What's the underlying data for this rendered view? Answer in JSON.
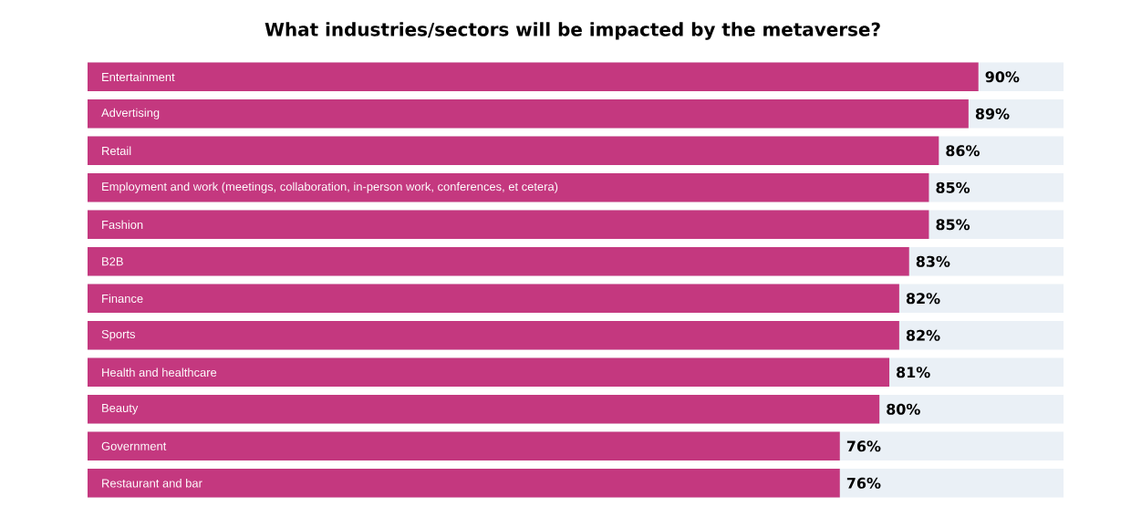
{
  "chart_data": {
    "type": "bar",
    "orientation": "horizontal",
    "title": "What industries/sectors will be impacted by the metaverse?",
    "categories": [
      "Entertainment",
      "Advertising",
      "Retail",
      "Employment and work (meetings, collaboration, in-person work, conferences, et cetera)",
      "Fashion",
      "B2B",
      "Finance",
      "Sports",
      "Health and healthcare",
      "Beauty",
      "Government",
      "Restaurant and bar"
    ],
    "values": [
      90,
      89,
      86,
      85,
      85,
      83,
      82,
      82,
      81,
      80,
      76,
      76
    ],
    "value_labels": [
      "90%",
      "89%",
      "86%",
      "85%",
      "85%",
      "83%",
      "82%",
      "82%",
      "81%",
      "80%",
      "76%",
      "76%"
    ],
    "color": "#c4387f",
    "xlim": [
      0,
      98.6
    ]
  }
}
